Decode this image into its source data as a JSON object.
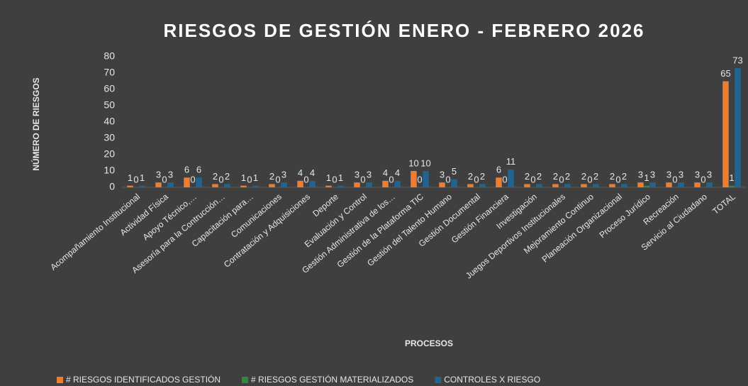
{
  "chart_data": {
    "type": "bar",
    "title": "RIESGOS DE GESTIÓN ENERO - FEBRERO 2026",
    "y_label": "NÚMERO DE RIESGOS",
    "x_label": "PROCESOS",
    "categories": [
      "Acompañamiento Institucional",
      "Actividad Física",
      "Apoyo Técnico,…",
      "Asesoría para la Contrucción…",
      "Capacitación para…",
      "Comunicaciones",
      "Contratación y Adquisiciones",
      "Deporte",
      "Evaluación y Control",
      "Gestión Administrativa de los…",
      "Gestión de la Plataforma TIC",
      "Gestión del Talento Humano",
      "Gestión Documental",
      "Gestión Financiera",
      "Investigación",
      "Juegos Deportivos Institucionales",
      "Mejoramiento Continuo",
      "Planeación Organizacional",
      "Proceso Jurídico",
      "Recreación",
      "Servicio al Ciudadano",
      "TOTAL"
    ],
    "series": [
      {
        "name": "# RIESGOS IDENTIFICADOS GESTIÓN",
        "color": "#ed7d31",
        "values": [
          1,
          3,
          6,
          2,
          1,
          2,
          4,
          1,
          3,
          4,
          10,
          3,
          2,
          6,
          2,
          2,
          2,
          2,
          3,
          3,
          3,
          65
        ]
      },
      {
        "name": "# RIESGOS GESTIÓN MATERIALIZADOS",
        "color": "#2e8b3e",
        "values": [
          0,
          0,
          0,
          0,
          0,
          0,
          0,
          0,
          0,
          0,
          0,
          0,
          0,
          0,
          0,
          0,
          0,
          0,
          1,
          0,
          0,
          1
        ]
      },
      {
        "name": "CONTROLES X RIESGO",
        "color": "#22648f",
        "values": [
          1,
          3,
          6,
          2,
          1,
          3,
          4,
          1,
          3,
          4,
          10,
          5,
          2,
          11,
          2,
          2,
          2,
          2,
          3,
          3,
          3,
          73
        ]
      }
    ],
    "ylim": [
      0,
      80
    ],
    "yticks": [
      0,
      10,
      20,
      30,
      40,
      50,
      60,
      70,
      80
    ],
    "grid": false,
    "legend": "bottom"
  }
}
